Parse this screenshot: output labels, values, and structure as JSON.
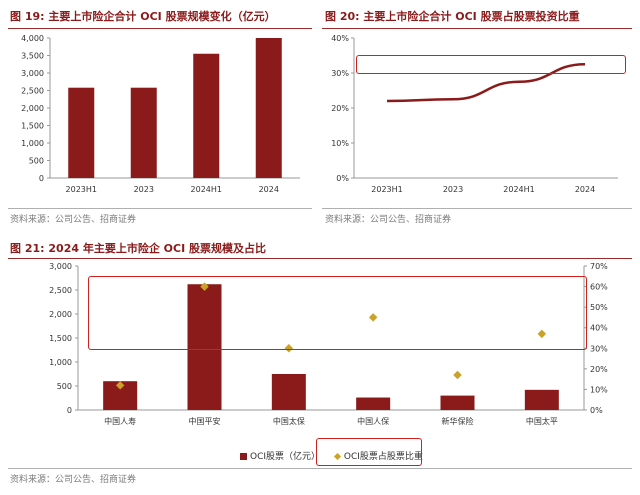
{
  "fig19": {
    "label": "图 19:",
    "title": "主要上市险企合计 OCI 股票规模变化（亿元）",
    "source": "资料来源：公司公告、招商证券",
    "chart_data": {
      "type": "bar",
      "categories": [
        "2023H1",
        "2023",
        "2024H1",
        "2024"
      ],
      "values": [
        2580,
        2580,
        3550,
        4000
      ],
      "ylim": [
        0,
        4000
      ],
      "yticks": [
        0,
        500,
        1000,
        1500,
        2000,
        2500,
        3000,
        3500,
        4000
      ],
      "ytick_labels": [
        "0",
        "500",
        "1,000",
        "1,500",
        "2,000",
        "2,500",
        "3,000",
        "3,500",
        "4,000"
      ],
      "color": "#8b1a1a",
      "grid": false
    }
  },
  "fig20": {
    "label": "图 20:",
    "title": "主要上市险企合计 OCI 股票占股票投资比重",
    "source": "资料来源：公司公告、招商证券",
    "chart_data": {
      "type": "line",
      "categories": [
        "2023H1",
        "2023",
        "2024H1",
        "2024"
      ],
      "values": [
        0.22,
        0.225,
        0.275,
        0.325
      ],
      "ylim": [
        0,
        0.4
      ],
      "yticks": [
        0,
        0.1,
        0.2,
        0.3,
        0.4
      ],
      "ytick_labels": [
        "0%",
        "10%",
        "20%",
        "30%",
        "40%"
      ],
      "color": "#8b1a1a",
      "grid": false
    }
  },
  "fig21": {
    "label": "图 21:",
    "title": "2024 年主要上市险企 OCI 股票规模及占比",
    "source": "资料来源：公司公告、招商证券",
    "chart_data": {
      "type": "bar",
      "categories": [
        "中国人寿",
        "中国平安",
        "中国太保",
        "中国人保",
        "新华保险",
        "中国太平"
      ],
      "series": [
        {
          "name": "OCI股票（亿元）",
          "type": "bar",
          "axis": "left",
          "values": [
            600,
            2620,
            750,
            260,
            300,
            420
          ],
          "color": "#8b1a1a"
        },
        {
          "name": "OCI股票占股票比重",
          "type": "scatter",
          "axis": "right",
          "values": [
            0.12,
            0.6,
            0.3,
            0.45,
            0.17,
            0.37
          ],
          "color": "#c9a227"
        }
      ],
      "ylim_left": [
        0,
        3000
      ],
      "yticks_left": [
        0,
        500,
        1000,
        1500,
        2000,
        2500,
        3000
      ],
      "ytick_labels_left": [
        "0",
        "500",
        "1,000",
        "1,500",
        "2,000",
        "2,500",
        "3,000"
      ],
      "ylim_right": [
        0,
        0.7
      ],
      "yticks_right": [
        0,
        0.1,
        0.2,
        0.3,
        0.4,
        0.5,
        0.6,
        0.7
      ],
      "ytick_labels_right": [
        "0%",
        "10%",
        "20%",
        "30%",
        "40%",
        "50%",
        "60%",
        "70%"
      ],
      "legend": "bottom",
      "grid": false
    }
  }
}
